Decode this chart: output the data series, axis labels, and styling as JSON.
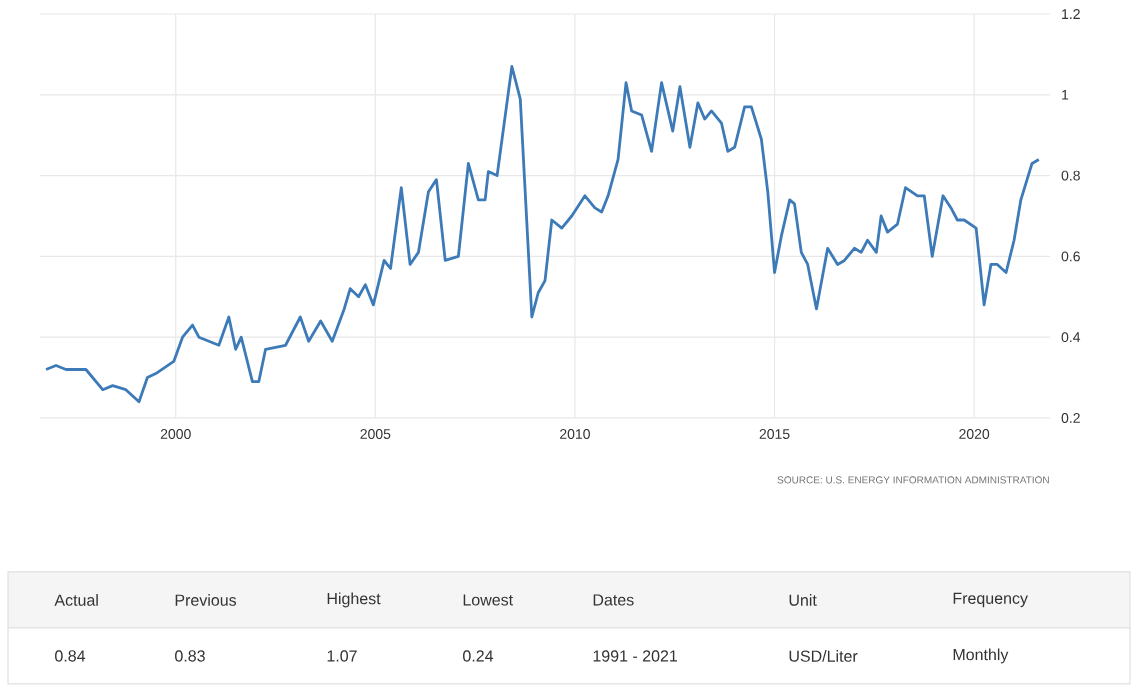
{
  "chart_data": [
    {
      "type": "line",
      "color": "#3d7ab8",
      "x": [
        1996.75,
        1997.0,
        1997.25,
        1997.75,
        1998.17,
        1998.42,
        1998.75,
        1999.08,
        1999.29,
        1999.5,
        1999.95,
        2000.17,
        2000.42,
        2000.58,
        2001.08,
        2001.33,
        2001.5,
        2001.64,
        2001.92,
        2002.08,
        2002.25,
        2002.75,
        2003.12,
        2003.33,
        2003.63,
        2003.92,
        2004.22,
        2004.37,
        2004.58,
        2004.75,
        2004.95,
        2005.22,
        2005.38,
        2005.65,
        2005.87,
        2006.08,
        2006.33,
        2006.53,
        2006.75,
        2007.08,
        2007.33,
        2007.58,
        2007.75,
        2007.83,
        2008.05,
        2008.42,
        2008.63,
        2008.92,
        2009.08,
        2009.25,
        2009.42,
        2009.67,
        2009.92,
        2010.25,
        2010.5,
        2010.67,
        2010.83,
        2011.08,
        2011.28,
        2011.42,
        2011.67,
        2011.92,
        2012.17,
        2012.45,
        2012.63,
        2012.88,
        2013.08,
        2013.25,
        2013.42,
        2013.67,
        2013.83,
        2014.0,
        2014.25,
        2014.42,
        2014.67,
        2014.83,
        2015.0,
        2015.17,
        2015.38,
        2015.5,
        2015.67,
        2015.83,
        2016.05,
        2016.33,
        2016.58,
        2016.75,
        2017.0,
        2017.17,
        2017.33,
        2017.55,
        2017.67,
        2017.83,
        2018.08,
        2018.28,
        2018.58,
        2018.75,
        2018.95,
        2019.22,
        2019.42,
        2019.58,
        2019.75,
        2020.05,
        2020.25,
        2020.42,
        2020.58,
        2020.8,
        2021.0,
        2021.17,
        2021.45,
        2021.62
      ],
      "values": [
        0.32,
        0.33,
        0.32,
        0.32,
        0.27,
        0.28,
        0.27,
        0.24,
        0.3,
        0.31,
        0.34,
        0.4,
        0.43,
        0.4,
        0.38,
        0.45,
        0.37,
        0.4,
        0.29,
        0.29,
        0.37,
        0.38,
        0.45,
        0.39,
        0.44,
        0.39,
        0.47,
        0.52,
        0.5,
        0.53,
        0.48,
        0.59,
        0.57,
        0.77,
        0.58,
        0.61,
        0.76,
        0.79,
        0.59,
        0.6,
        0.83,
        0.74,
        0.74,
        0.81,
        0.8,
        1.07,
        0.99,
        0.45,
        0.51,
        0.54,
        0.69,
        0.67,
        0.7,
        0.75,
        0.72,
        0.71,
        0.75,
        0.84,
        1.03,
        0.96,
        0.95,
        0.86,
        1.03,
        0.91,
        1.02,
        0.87,
        0.98,
        0.94,
        0.96,
        0.93,
        0.86,
        0.87,
        0.97,
        0.97,
        0.89,
        0.76,
        0.56,
        0.65,
        0.74,
        0.73,
        0.61,
        0.58,
        0.47,
        0.62,
        0.58,
        0.59,
        0.62,
        0.61,
        0.64,
        0.61,
        0.7,
        0.66,
        0.68,
        0.77,
        0.75,
        0.75,
        0.6,
        0.75,
        0.72,
        0.69,
        0.69,
        0.67,
        0.48,
        0.58,
        0.58,
        0.56,
        0.64,
        0.74,
        0.83,
        0.84
      ],
      "xlim": [
        1996.6,
        2021.9
      ],
      "ylim": [
        0.2,
        1.2
      ],
      "xticks": [
        2000,
        2005,
        2010,
        2015,
        2020
      ],
      "yticks": [
        0.2,
        0.4,
        0.6,
        0.8,
        1,
        1.2
      ],
      "grid": true,
      "annotations": [
        "SOURCE: U.S. ENERGY INFORMATION ADMINISTRATION"
      ]
    },
    {
      "type": "other",
      "annotations": [
        "Actual",
        "Previous",
        "Highest",
        "Lowest",
        "Dates",
        "Unit",
        "Frequency",
        "0.84",
        "0.83",
        "1.07",
        "0.24",
        "1991 - 2021",
        "USD/Liter",
        "Monthly"
      ]
    }
  ]
}
